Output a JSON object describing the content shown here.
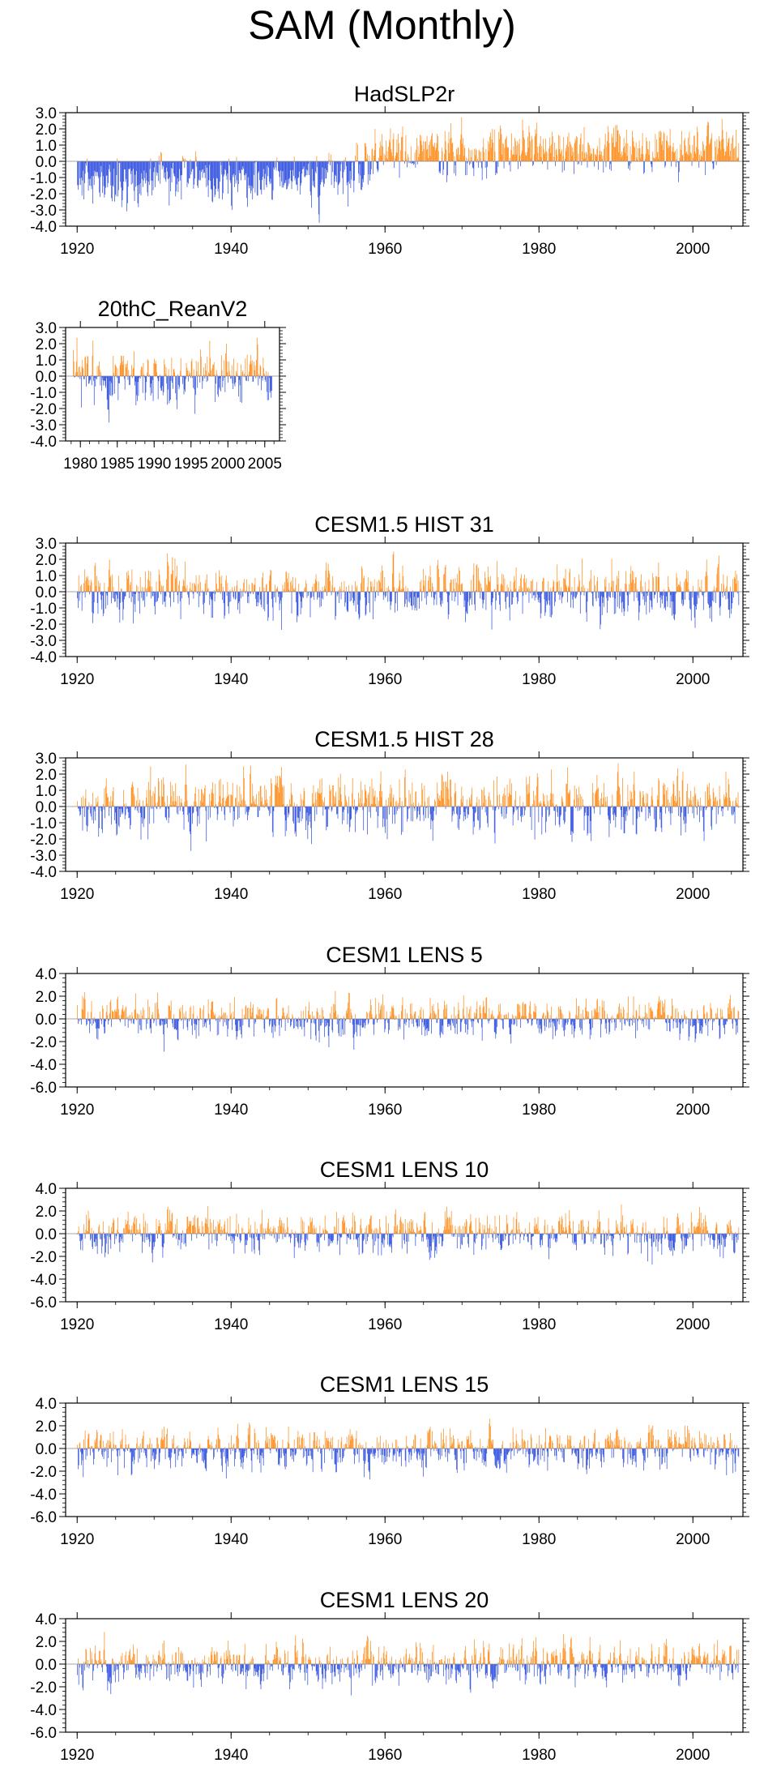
{
  "title": "SAM (Monthly)",
  "colors": {
    "positive": "#ff8c1a",
    "negative": "#3050e0",
    "frame": "#000000"
  },
  "chart_data": [
    {
      "type": "bar",
      "title": "HadSLP2r",
      "x_start": 1920,
      "x_end": 2005,
      "xlim": [
        1918.5,
        2006.5
      ],
      "xticks": [
        1920,
        1940,
        1960,
        1980,
        2000
      ],
      "xtick_labels": [
        "1920",
        "1940",
        "1960",
        "1980",
        "2000"
      ],
      "ylim": [
        -4,
        3
      ],
      "yticks": [
        -4,
        -3,
        -2,
        -1,
        0,
        1,
        2,
        3
      ],
      "ytick_labels": [
        "-4.0",
        "-3.0",
        "-2.0",
        "-1.0",
        "0.0",
        "1.0",
        "2.0",
        "3.0"
      ],
      "profile": [
        [
          1920,
          -1.2
        ],
        [
          1925,
          -1.3
        ],
        [
          1930,
          -1.1
        ],
        [
          1935,
          -0.9
        ],
        [
          1940,
          -1.3
        ],
        [
          1945,
          -1.0
        ],
        [
          1950,
          -1.2
        ],
        [
          1955,
          -0.8
        ],
        [
          1958,
          0.0
        ],
        [
          1962,
          0.5
        ],
        [
          1970,
          0.6
        ],
        [
          1980,
          0.7
        ],
        [
          1990,
          0.7
        ],
        [
          2000,
          0.8
        ],
        [
          2005,
          1.0
        ]
      ],
      "amplitude": 1.0,
      "seed": 11
    },
    {
      "type": "bar",
      "title": "20thC_ReanV2",
      "x_start": 1979,
      "x_end": 2005,
      "xlim": [
        1978,
        2007
      ],
      "xticks": [
        1980,
        1985,
        1990,
        1995,
        2000,
        2005
      ],
      "xtick_labels": [
        "1980",
        "1985",
        "1990",
        "1995",
        "2000",
        "2005"
      ],
      "ylim": [
        -4,
        3
      ],
      "yticks": [
        -4,
        -3,
        -2,
        -1,
        0,
        1,
        2,
        3
      ],
      "ytick_labels": [
        "-4.0",
        "-3.0",
        "-2.0",
        "-1.0",
        "0.0",
        "1.0",
        "2.0",
        "3.0"
      ],
      "profile": [
        [
          1979,
          0.0
        ],
        [
          2005,
          0.0
        ]
      ],
      "amplitude": 1.2,
      "seed": 23
    },
    {
      "type": "bar",
      "title": "CESM1.5 HIST 31",
      "x_start": 1920,
      "x_end": 2005,
      "xlim": [
        1918.5,
        2006.5
      ],
      "xticks": [
        1920,
        1940,
        1960,
        1980,
        2000
      ],
      "xtick_labels": [
        "1920",
        "1940",
        "1960",
        "1980",
        "2000"
      ],
      "ylim": [
        -4,
        3
      ],
      "yticks": [
        -4,
        -3,
        -2,
        -1,
        0,
        1,
        2,
        3
      ],
      "ytick_labels": [
        "-4.0",
        "-3.0",
        "-2.0",
        "-1.0",
        "0.0",
        "1.0",
        "2.0",
        "3.0"
      ],
      "profile": [
        [
          1920,
          0.0
        ],
        [
          2005,
          0.0
        ]
      ],
      "amplitude": 1.1,
      "seed": 31
    },
    {
      "type": "bar",
      "title": "CESM1.5 HIST 28",
      "x_start": 1920,
      "x_end": 2005,
      "xlim": [
        1918.5,
        2006.5
      ],
      "xticks": [
        1920,
        1940,
        1960,
        1980,
        2000
      ],
      "xtick_labels": [
        "1920",
        "1940",
        "1960",
        "1980",
        "2000"
      ],
      "ylim": [
        -4,
        3
      ],
      "yticks": [
        -4,
        -3,
        -2,
        -1,
        0,
        1,
        2,
        3
      ],
      "ytick_labels": [
        "-4.0",
        "-3.0",
        "-2.0",
        "-1.0",
        "0.0",
        "1.0",
        "2.0",
        "3.0"
      ],
      "profile": [
        [
          1920,
          0.0
        ],
        [
          2005,
          0.0
        ]
      ],
      "amplitude": 1.2,
      "seed": 28
    },
    {
      "type": "bar",
      "title": "CESM1 LENS 5",
      "x_start": 1920,
      "x_end": 2005,
      "xlim": [
        1918.5,
        2006.5
      ],
      "xticks": [
        1920,
        1940,
        1960,
        1980,
        2000
      ],
      "xtick_labels": [
        "1920",
        "1940",
        "1960",
        "1980",
        "2000"
      ],
      "ylim": [
        -6,
        4
      ],
      "yticks": [
        -6,
        -4,
        -2,
        0,
        2,
        4
      ],
      "ytick_labels": [
        "-6.0",
        "-4.0",
        "-2.0",
        "0.0",
        "2.0",
        "4.0"
      ],
      "profile": [
        [
          1920,
          0.0
        ],
        [
          2005,
          0.0
        ]
      ],
      "amplitude": 1.2,
      "seed": 5
    },
    {
      "type": "bar",
      "title": "CESM1 LENS 10",
      "x_start": 1920,
      "x_end": 2005,
      "xlim": [
        1918.5,
        2006.5
      ],
      "xticks": [
        1920,
        1940,
        1960,
        1980,
        2000
      ],
      "xtick_labels": [
        "1920",
        "1940",
        "1960",
        "1980",
        "2000"
      ],
      "ylim": [
        -6,
        4
      ],
      "yticks": [
        -6,
        -4,
        -2,
        0,
        2,
        4
      ],
      "ytick_labels": [
        "-6.0",
        "-4.0",
        "-2.0",
        "0.0",
        "2.0",
        "4.0"
      ],
      "profile": [
        [
          1920,
          0.0
        ],
        [
          2005,
          0.0
        ]
      ],
      "amplitude": 1.2,
      "seed": 10
    },
    {
      "type": "bar",
      "title": "CESM1 LENS 15",
      "x_start": 1920,
      "x_end": 2005,
      "xlim": [
        1918.5,
        2006.5
      ],
      "xticks": [
        1920,
        1940,
        1960,
        1980,
        2000
      ],
      "xtick_labels": [
        "1920",
        "1940",
        "1960",
        "1980",
        "2000"
      ],
      "ylim": [
        -6,
        4
      ],
      "yticks": [
        -6,
        -4,
        -2,
        0,
        2,
        4
      ],
      "ytick_labels": [
        "-6.0",
        "-4.0",
        "-2.0",
        "0.0",
        "2.0",
        "4.0"
      ],
      "profile": [
        [
          1920,
          0.0
        ],
        [
          2005,
          0.0
        ]
      ],
      "amplitude": 1.2,
      "seed": 15
    },
    {
      "type": "bar",
      "title": "CESM1 LENS 20",
      "x_start": 1920,
      "x_end": 2005,
      "xlim": [
        1918.5,
        2006.5
      ],
      "xticks": [
        1920,
        1940,
        1960,
        1980,
        2000
      ],
      "xtick_labels": [
        "1920",
        "1940",
        "1960",
        "1980",
        "2000"
      ],
      "ylim": [
        -6,
        4
      ],
      "yticks": [
        -6,
        -4,
        -2,
        0,
        2,
        4
      ],
      "ytick_labels": [
        "-6.0",
        "-4.0",
        "-2.0",
        "0.0",
        "2.0",
        "4.0"
      ],
      "profile": [
        [
          1920,
          0.0
        ],
        [
          2005,
          0.0
        ]
      ],
      "amplitude": 1.2,
      "seed": 20
    }
  ]
}
